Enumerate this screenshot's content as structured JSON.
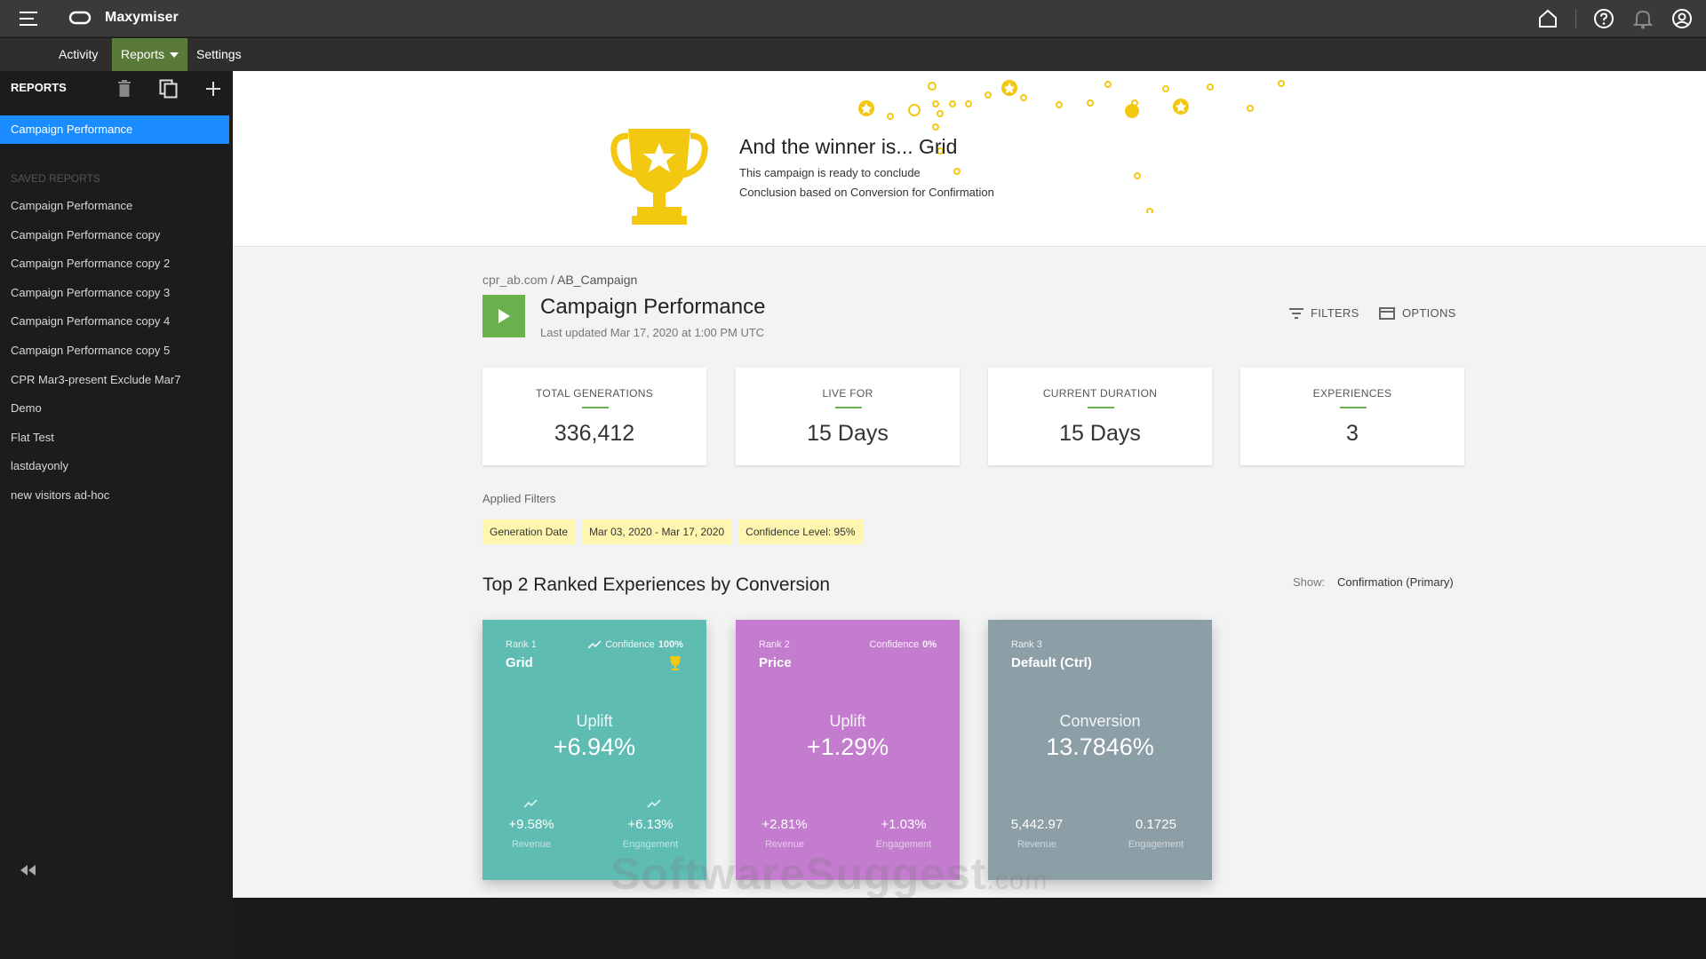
{
  "app": {
    "title": "Maxymiser"
  },
  "nav": {
    "activity": "Activity",
    "reports": "Reports",
    "settings": "Settings"
  },
  "sidebar": {
    "header": "REPORTS",
    "active_item": "Campaign Performance",
    "section_label": "SAVED REPORTS",
    "items": [
      "Campaign Performance",
      "Campaign Performance copy",
      "Campaign Performance copy 2",
      "Campaign Performance copy 3",
      "Campaign Performance copy 4",
      "Campaign Performance copy 5",
      "CPR Mar3-present Exclude Mar7",
      "Demo",
      "Flat Test",
      "lastdayonly",
      "new visitors ad-hoc"
    ]
  },
  "banner": {
    "title": "And the winner is... Grid",
    "line1": "This campaign is ready to conclude",
    "line2": "Conclusion based on Conversion for Confirmation",
    "accent_color": "#f2c811"
  },
  "breadcrumb": {
    "site": "cpr_ab.com",
    "separator": "/",
    "campaign": "AB_Campaign"
  },
  "page": {
    "title": "Campaign Performance",
    "updated": "Last updated Mar 17, 2020 at 1:00 PM UTC",
    "filters_label": "FILTERS",
    "options_label": "OPTIONS"
  },
  "stats": [
    {
      "label": "TOTAL GENERATIONS",
      "value": "336,412"
    },
    {
      "label": "LIVE FOR",
      "value": "15 Days"
    },
    {
      "label": "CURRENT DURATION",
      "value": "15 Days"
    },
    {
      "label": "EXPERIENCES",
      "value": "3"
    }
  ],
  "filters": {
    "label": "Applied Filters",
    "chips": [
      "Generation Date",
      "Mar 03, 2020 - Mar 17, 2020",
      "Confidence Level: 95%"
    ]
  },
  "ranking": {
    "title": "Top 2 Ranked Experiences by Conversion",
    "show_label": "Show:",
    "show_value": "Confirmation (Primary)"
  },
  "experiences": [
    {
      "rank": "Rank 1",
      "name": "Grid",
      "confidence_label": "Confidence",
      "confidence_value": "100%",
      "metric_label": "Uplift",
      "metric_value": "+6.94%",
      "left_value": "+9.58%",
      "left_label": "Revenue",
      "right_value": "+6.13%",
      "right_label": "Engagement",
      "color": "#5fbcb2"
    },
    {
      "rank": "Rank 2",
      "name": "Price",
      "confidence_label": "Confidence",
      "confidence_value": "0%",
      "metric_label": "Uplift",
      "metric_value": "+1.29%",
      "left_value": "+2.81%",
      "left_label": "Revenue",
      "right_value": "+1.03%",
      "right_label": "Engagement",
      "color": "#c47ccf"
    },
    {
      "rank": "Rank 3",
      "name": "Default (Ctrl)",
      "metric_label": "Conversion",
      "metric_value": "13.7846%",
      "left_value": "5,442.97",
      "left_label": "Revenue",
      "right_value": "0.1725",
      "right_label": "Engagement",
      "color": "#8c9ea6"
    }
  ],
  "watermark": {
    "main": "SoftwareSuggest",
    "suffix": ".com"
  }
}
